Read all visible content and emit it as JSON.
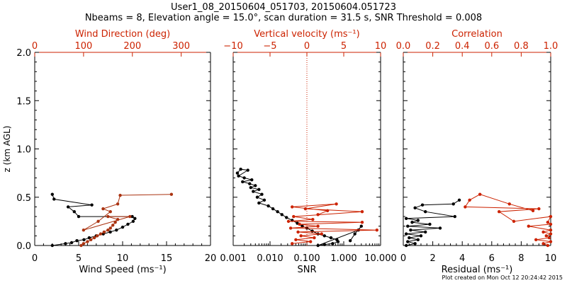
{
  "title_line1": "User1_08_20150604_051703, 20150604.051723",
  "title_line2": "Nbeams = 8, Elevation angle = 15.0°, scan duration = 31.5 s, SNR Threshold = 0.008",
  "footer": "Plot created on Mon Oct 12 20:24:42 2015",
  "colors": {
    "black": "#000000",
    "red": "#cc2200",
    "dark_red": "#aa3311"
  },
  "chart_data": [
    {
      "type": "scatter",
      "name": "wind",
      "xlabel": "Wind Speed (ms⁻¹)",
      "ylabel": "z (km AGL)",
      "x2label": "Wind Direction (deg)",
      "xlim": [
        0,
        20
      ],
      "x2lim": [
        0,
        360
      ],
      "ylim": [
        0,
        2
      ],
      "xticks": [
        "0",
        "5",
        "10",
        "15",
        "20"
      ],
      "x2ticks": [
        "0",
        "100",
        "200",
        "300"
      ],
      "yticks": [
        "0.0",
        "0.5",
        "1.0",
        "1.5",
        "2.0"
      ],
      "series": [
        {
          "name": "Wind Speed",
          "color": "#000000",
          "points": [
            [
              2,
              0.0
            ],
            [
              3.5,
              0.02
            ],
            [
              4.2,
              0.03
            ],
            [
              4.8,
              0.05
            ],
            [
              5.6,
              0.06
            ],
            [
              6.2,
              0.08
            ],
            [
              7.0,
              0.1
            ],
            [
              7.8,
              0.12
            ],
            [
              8.6,
              0.14
            ],
            [
              9.3,
              0.16
            ],
            [
              10.0,
              0.19
            ],
            [
              10.6,
              0.22
            ],
            [
              11.2,
              0.25
            ],
            [
              11.4,
              0.28
            ],
            [
              11.1,
              0.3
            ],
            [
              5.0,
              0.3
            ],
            [
              4.5,
              0.35
            ],
            [
              3.8,
              0.4
            ],
            [
              6.5,
              0.42
            ],
            [
              2.2,
              0.48
            ],
            [
              2.0,
              0.53
            ]
          ]
        },
        {
          "name": "Wind Direction",
          "color": "#aa3311",
          "points": [
            [
              95,
              0.0
            ],
            [
              100,
              0.02
            ],
            [
              108,
              0.04
            ],
            [
              115,
              0.06
            ],
            [
              122,
              0.08
            ],
            [
              128,
              0.1
            ],
            [
              135,
              0.12
            ],
            [
              142,
              0.14
            ],
            [
              150,
              0.16
            ],
            [
              155,
              0.18
            ],
            [
              160,
              0.21
            ],
            [
              165,
              0.24
            ],
            [
              170,
              0.27
            ],
            [
              150,
              0.3
            ],
            [
              195,
              0.3
            ],
            [
              100,
              0.16
            ],
            [
              130,
              0.25
            ],
            [
              155,
              0.35
            ],
            [
              140,
              0.38
            ],
            [
              170,
              0.43
            ],
            [
              175,
              0.52
            ],
            [
              280,
              0.53
            ]
          ]
        }
      ]
    },
    {
      "type": "scatter",
      "name": "snr",
      "xlabel": "SNR",
      "x2label": "Vertical velocity (ms⁻¹)",
      "xscale": "log",
      "xlim": [
        0.001,
        10
      ],
      "x2lim": [
        -10,
        10
      ],
      "ylim": [
        0,
        2
      ],
      "xticks": [
        "0.001",
        "0.010",
        "0.100",
        "1.000",
        "10.000"
      ],
      "x2ticks": [
        "−10",
        "−5",
        "0",
        "5",
        "10"
      ],
      "zero_line_x2": 0,
      "series": [
        {
          "name": "SNR",
          "color": "#000000",
          "points": [
            [
              0.0013,
              0.75
            ],
            [
              0.0016,
              0.79
            ],
            [
              0.0025,
              0.78
            ],
            [
              0.0014,
              0.72
            ],
            [
              0.002,
              0.7
            ],
            [
              0.0032,
              0.68
            ],
            [
              0.0018,
              0.66
            ],
            [
              0.0028,
              0.64
            ],
            [
              0.004,
              0.62
            ],
            [
              0.003,
              0.6
            ],
            [
              0.005,
              0.58
            ],
            [
              0.0035,
              0.56
            ],
            [
              0.006,
              0.53
            ],
            [
              0.0045,
              0.5
            ],
            [
              0.007,
              0.47
            ],
            [
              0.005,
              0.44
            ],
            [
              0.009,
              0.41
            ],
            [
              0.012,
              0.38
            ],
            [
              0.016,
              0.35
            ],
            [
              0.021,
              0.32
            ],
            [
              0.028,
              0.29
            ],
            [
              0.04,
              0.26
            ],
            [
              0.055,
              0.23
            ],
            [
              0.075,
              0.2
            ],
            [
              0.1,
              0.18
            ],
            [
              0.14,
              0.15
            ],
            [
              0.2,
              0.12
            ],
            [
              0.3,
              0.1
            ],
            [
              0.45,
              0.08
            ],
            [
              0.65,
              0.06
            ],
            [
              0.7,
              0.04
            ],
            [
              0.5,
              0.02
            ],
            [
              0.3,
              0.01
            ],
            [
              0.2,
              0.0
            ],
            [
              2.5,
              0.16
            ],
            [
              3.0,
              0.2
            ],
            [
              2.0,
              0.12
            ],
            [
              1.5,
              0.05
            ]
          ]
        },
        {
          "name": "Vertical velocity",
          "color": "#cc2200",
          "points": [
            [
              -2.0,
              0.02
            ],
            [
              0.5,
              0.04
            ],
            [
              -1.5,
              0.06
            ],
            [
              1.0,
              0.08
            ],
            [
              -0.8,
              0.1
            ],
            [
              2.0,
              0.12
            ],
            [
              -1.2,
              0.14
            ],
            [
              9.5,
              0.16
            ],
            [
              -2.2,
              0.18
            ],
            [
              1.5,
              0.2
            ],
            [
              -1.0,
              0.22
            ],
            [
              7.5,
              0.24
            ],
            [
              -2.5,
              0.25
            ],
            [
              0.8,
              0.27
            ],
            [
              -1.8,
              0.3
            ],
            [
              7.5,
              0.35
            ],
            [
              -0.2,
              0.38
            ],
            [
              4.0,
              0.43
            ],
            [
              -2.0,
              0.4
            ],
            [
              2.8,
              0.36
            ],
            [
              1.5,
              0.32
            ]
          ]
        }
      ]
    },
    {
      "type": "scatter",
      "name": "residual",
      "xlabel": "Residual (ms⁻¹)",
      "x2label": "Correlation",
      "xlim": [
        0,
        10
      ],
      "x2lim": [
        0,
        1
      ],
      "ylim": [
        0,
        2
      ],
      "xticks": [
        "0",
        "2",
        "4",
        "6",
        "8",
        "10"
      ],
      "x2ticks": [
        "0.0",
        "0.2",
        "0.4",
        "0.6",
        "0.8",
        "1.0"
      ],
      "series": [
        {
          "name": "Residual",
          "color": "#000000",
          "points": [
            [
              0.2,
              0.0
            ],
            [
              0.8,
              0.02
            ],
            [
              0.3,
              0.04
            ],
            [
              1.0,
              0.06
            ],
            [
              0.4,
              0.08
            ],
            [
              1.2,
              0.1
            ],
            [
              0.2,
              0.12
            ],
            [
              1.5,
              0.14
            ],
            [
              0.5,
              0.16
            ],
            [
              2.5,
              0.18
            ],
            [
              0.3,
              0.2
            ],
            [
              1.8,
              0.22
            ],
            [
              0.6,
              0.24
            ],
            [
              1.0,
              0.26
            ],
            [
              0.2,
              0.28
            ],
            [
              3.5,
              0.3
            ],
            [
              1.5,
              0.35
            ],
            [
              0.8,
              0.39
            ],
            [
              1.3,
              0.42
            ],
            [
              3.4,
              0.43
            ],
            [
              3.8,
              0.47
            ]
          ]
        },
        {
          "name": "Correlation",
          "color": "#cc2200",
          "points": [
            [
              0.98,
              0.0
            ],
            [
              0.95,
              0.02
            ],
            [
              1.0,
              0.04
            ],
            [
              0.9,
              0.06
            ],
            [
              0.99,
              0.08
            ],
            [
              0.97,
              0.1
            ],
            [
              1.0,
              0.12
            ],
            [
              0.95,
              0.14
            ],
            [
              1.0,
              0.16
            ],
            [
              0.85,
              0.2
            ],
            [
              1.0,
              0.22
            ],
            [
              0.98,
              0.24
            ],
            [
              1.0,
              0.3
            ],
            [
              0.75,
              0.25
            ],
            [
              0.65,
              0.35
            ],
            [
              0.92,
              0.38
            ],
            [
              0.42,
              0.4
            ],
            [
              0.45,
              0.47
            ],
            [
              0.52,
              0.53
            ],
            [
              0.72,
              0.43
            ],
            [
              0.88,
              0.36
            ]
          ]
        }
      ]
    }
  ]
}
